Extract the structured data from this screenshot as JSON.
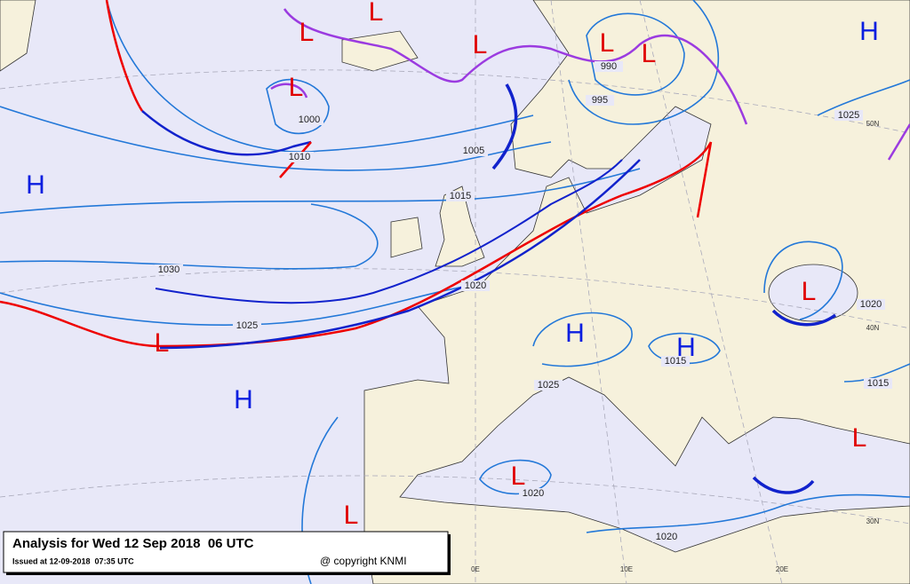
{
  "pressure_centers": [
    "L",
    "L",
    "L",
    "L",
    "L",
    "L",
    "H",
    "H",
    "L",
    "H",
    "H",
    "L",
    "H",
    "L",
    "L",
    "L"
  ],
  "isobar_labels": [
    1000,
    1010,
    1005,
    1015,
    1030,
    1025,
    1020,
    995,
    990,
    1025,
    1020,
    1015,
    1025,
    1015,
    1020,
    1020
  ],
  "grid_labels": [
    "50N",
    "40N",
    "30N",
    "0E",
    "10E",
    "20E"
  ],
  "footer": {
    "title": "Analysis for Wed 12 Sep 2018  06 UTC",
    "issued": "Issued at 12-09-2018  07:35 UTC",
    "copyright": "@ copyright KNMI"
  }
}
